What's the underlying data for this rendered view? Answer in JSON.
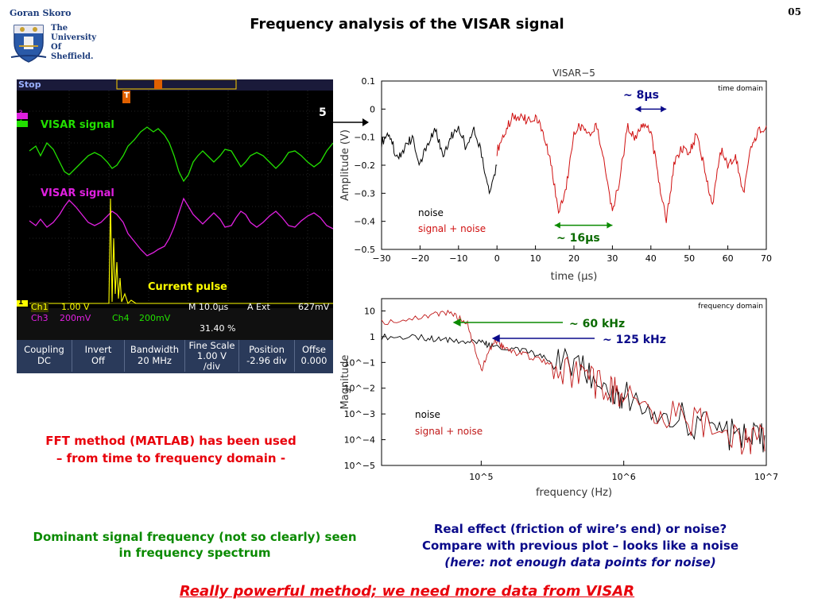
{
  "header": {
    "author": "Goran Skoro",
    "university_lines": [
      "The",
      "University",
      "Of",
      "Sheffield."
    ],
    "title": "Frequency analysis of the VISAR signal",
    "slide_number": "05"
  },
  "scope": {
    "status": "Stop",
    "trigger_marker": "T",
    "channel_markers": [
      "3",
      "4",
      "1"
    ],
    "label_visar_green": "VISAR signal",
    "label_visar_magenta": "VISAR signal",
    "label_current": "Current pulse",
    "shot_number": "5",
    "readout_row1": {
      "ch1": "Ch1",
      "ch1_scale": "1.00 V",
      "timebase": "M 10.0µs",
      "trig_src": "A  Ext",
      "trig_level": "627mV"
    },
    "readout_row2": {
      "ch3": "Ch3",
      "ch3_scale": "200mV",
      "ch4": "Ch4",
      "ch4_scale": "200mV"
    },
    "readout_row3": {
      "position": "31.40 %"
    },
    "buttons": [
      {
        "top": "Coupling",
        "bottom": "DC"
      },
      {
        "top": "Invert",
        "bottom": "Off"
      },
      {
        "top": "Bandwidth",
        "bottom": "20 MHz"
      },
      {
        "top": "Fine Scale",
        "mid": "1.00 V",
        "bottom": "/div"
      },
      {
        "top": "Position",
        "bottom": "-2.96 div"
      },
      {
        "top": "Offse",
        "bottom": "0.000"
      }
    ],
    "colors": {
      "green": "#22e000",
      "magenta": "#e020e0",
      "yellow": "#ffff00",
      "bg": "#000000",
      "button_bg": "#2a3a5a"
    }
  },
  "annotations": {
    "period_8": "~ 8μs",
    "period_16": "~ 16μs",
    "freq_60": "~ 60 kHz",
    "freq_125": "~ 125 kHz"
  },
  "chart_data": [
    {
      "type": "line",
      "title": "VISAR−5",
      "corner_label": "time domain",
      "xlabel": "time (μs)",
      "ylabel": "Amplitude (V)",
      "xlim": [
        -30,
        70
      ],
      "ylim": [
        -0.5,
        0.1
      ],
      "x_ticks": [
        "−30",
        "−20",
        "−10",
        "0",
        "10",
        "20",
        "30",
        "40",
        "50",
        "60",
        "70"
      ],
      "y_ticks": [
        "0.1",
        "0",
        "−0.1",
        "−0.2",
        "−0.3",
        "−0.4",
        "−0.5"
      ],
      "series": [
        {
          "name": "noise",
          "color": "#000000",
          "x": [
            -30,
            -28,
            -26,
            -24,
            -22,
            -20,
            -18,
            -16,
            -14,
            -12,
            -10,
            -8,
            -6,
            -4,
            -2,
            0
          ],
          "y": [
            -0.12,
            -0.08,
            -0.18,
            -0.14,
            -0.1,
            -0.2,
            -0.12,
            -0.08,
            -0.16,
            -0.1,
            -0.06,
            -0.14,
            -0.08,
            -0.16,
            -0.3,
            -0.2
          ]
        },
        {
          "name": "signal + noise",
          "color": "#d01010",
          "x": [
            0,
            2,
            4,
            6,
            8,
            10,
            12,
            14,
            16,
            18,
            20,
            22,
            24,
            26,
            28,
            30,
            32,
            34,
            36,
            38,
            40,
            42,
            44,
            46,
            48,
            50,
            52,
            54,
            56,
            58,
            60,
            62,
            64,
            66,
            68,
            70
          ],
          "y": [
            -0.15,
            -0.08,
            -0.03,
            -0.03,
            -0.04,
            -0.03,
            -0.08,
            -0.2,
            -0.36,
            -0.28,
            -0.08,
            -0.06,
            -0.1,
            -0.06,
            -0.2,
            -0.37,
            -0.24,
            -0.06,
            -0.1,
            -0.05,
            -0.08,
            -0.25,
            -0.4,
            -0.2,
            -0.14,
            -0.16,
            -0.08,
            -0.22,
            -0.34,
            -0.14,
            -0.2,
            -0.16,
            -0.3,
            -0.14,
            -0.08,
            -0.06
          ]
        }
      ],
      "legend": [
        "noise",
        "signal + noise"
      ]
    },
    {
      "type": "line",
      "title": "",
      "corner_label": "frequency domain",
      "xlabel": "frequency (Hz)",
      "ylabel": "Magnitude",
      "xscale": "log",
      "yscale": "log",
      "xlim": [
        20000,
        10000000
      ],
      "ylim": [
        1e-05,
        30
      ],
      "x_ticks": [
        "10^5",
        "10^6",
        "10^7"
      ],
      "y_ticks": [
        "10",
        "1",
        "10^−1",
        "10^−2",
        "10^−3",
        "10^−4",
        "10^−5"
      ],
      "series": [
        {
          "name": "noise",
          "color": "#000000",
          "x": [
            20000,
            40000,
            60000,
            100000,
            125000,
            200000,
            300000,
            500000,
            800000,
            1000000,
            2000000,
            4000000,
            7000000,
            10000000
          ],
          "y": [
            1.0,
            0.9,
            0.7,
            0.6,
            0.4,
            0.3,
            0.12,
            0.05,
            0.01,
            0.006,
            0.001,
            0.0003,
            0.0001,
            0.0001
          ]
        },
        {
          "name": "signal + noise",
          "color": "#c01818",
          "x": [
            20000,
            40000,
            60000,
            80000,
            100000,
            125000,
            150000,
            200000,
            300000,
            500000,
            800000,
            1000000,
            2000000,
            4000000,
            7000000,
            10000000
          ],
          "y": [
            3.5,
            6.0,
            9.0,
            3.0,
            0.05,
            0.8,
            0.3,
            0.2,
            0.1,
            0.03,
            0.008,
            0.004,
            0.0009,
            0.0003,
            0.0001,
            0.0001
          ]
        }
      ],
      "legend": [
        "noise",
        "signal + noise"
      ]
    }
  ],
  "notes": {
    "fft_line1": "FFT method (MATLAB) has been used",
    "fft_line2": "– from time to frequency domain -",
    "dominant_line1": "Dominant signal frequency (not so clearly) seen",
    "dominant_line2": "in frequency spectrum",
    "real_line1": "Real effect (friction of wire’s end) or noise?",
    "real_line2": "Compare with previous plot – looks like a noise",
    "real_line3": "(here: not enough data points for noise)",
    "conclusion": "Really powerful method; we need more data from VISAR"
  }
}
